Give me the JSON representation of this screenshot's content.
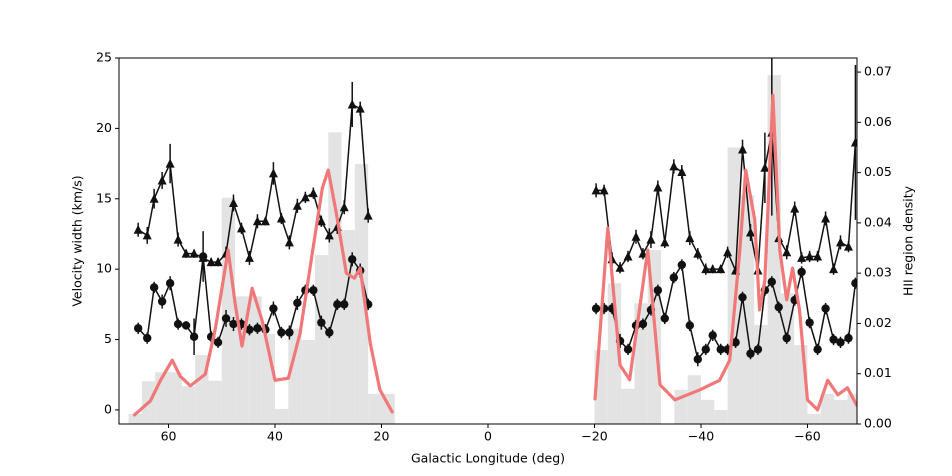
{
  "chart_data": {
    "type": "line",
    "xlabel": "Galactic Longitude (deg)",
    "ylabel": "Velocity width (km/s)",
    "y2label": "HII region density",
    "xlim": [
      69.3,
      -69.3
    ],
    "ylim": [
      -1,
      25
    ],
    "y2lim": [
      0,
      0.0728
    ],
    "xticks": [
      60,
      40,
      20,
      0,
      {
        "value": -20,
        "label": "−20"
      },
      {
        "value": -40,
        "label": "−40"
      },
      {
        "value": -60,
        "label": "−60"
      }
    ],
    "yticks": [
      0,
      5,
      10,
      15,
      20,
      25
    ],
    "y2ticks": [
      {
        "value": 0,
        "label": "0.00"
      },
      {
        "value": 0.01,
        "label": "0.01"
      },
      {
        "value": 0.02,
        "label": "0.02"
      },
      {
        "value": 0.03,
        "label": "0.03"
      },
      {
        "value": 0.04,
        "label": "0.04"
      },
      {
        "value": 0.05,
        "label": "0.05"
      },
      {
        "value": 0.06,
        "label": "0.06"
      },
      {
        "value": 0.07,
        "label": "0.07"
      }
    ],
    "series": [
      {
        "type": "histogram",
        "axis": "y2",
        "color": "#e3e3e3",
        "bins": [
          67.5,
          65,
          62.5,
          60,
          57.5,
          55,
          52.5,
          50,
          47.5,
          45,
          42.5,
          40,
          37.5,
          35,
          32.5,
          30,
          27.5,
          25,
          22.5,
          20,
          17.5,
          15,
          12.5,
          10,
          7.5,
          5,
          2.5,
          0,
          -2.5,
          -5,
          -7.5,
          -10,
          -12.5,
          -15,
          -17.5,
          -20,
          -22.5,
          -25,
          -27.5,
          -30,
          -32.5,
          -35,
          -37.5,
          -40,
          -42.5,
          -45,
          -47.5,
          -50,
          -52.5,
          -55,
          -57.5,
          -60,
          -62.5,
          -65,
          -67.5,
          -70
        ],
        "values": [
          0.002,
          0.0085,
          0.0103,
          0.0103,
          0.0075,
          0.0137,
          0.0086,
          0.045,
          0.0254,
          0.0254,
          0.0179,
          0.003,
          0.019,
          0.0167,
          0.0336,
          0.058,
          0.0386,
          0.0517,
          0.006,
          0.006,
          0,
          0,
          0,
          0,
          0,
          0,
          0,
          0,
          0,
          0,
          0,
          0,
          0,
          0,
          0,
          0.0147,
          0.028,
          0.007,
          0.024,
          0.0346,
          0,
          0.0068,
          0.0097,
          0.0048,
          0.0028,
          0.055,
          0.0455,
          0.0197,
          0.0694,
          0.026,
          0.0157,
          0.002,
          0.006,
          0.0048,
          0.006
        ]
      },
      {
        "type": "line",
        "marker": "triangle",
        "color": "#111111",
        "x": [
          65.7,
          64,
          62.7,
          61.2,
          59.7,
          58.2,
          56.7,
          55.2,
          53.5,
          52,
          50.7,
          49.2,
          47.8,
          46.3,
          44.8,
          43.3,
          41.8,
          40.3,
          38.8,
          37.3,
          35.8,
          34.3,
          32.8,
          31.3,
          29.8,
          28.3,
          27,
          25.5,
          24,
          22.5,
          null,
          -20.3,
          -21.8,
          -23.3,
          -24.8,
          -26.3,
          -27.8,
          -29.1,
          -30.6,
          -31.9,
          -33.2,
          -34.9,
          -36.4,
          -37.9,
          -39.4,
          -40.9,
          -42.2,
          -43.7,
          -45,
          -46.5,
          -47.8,
          -49.3,
          -50.7,
          -52,
          -53.3,
          -54.6,
          -56.1,
          -57.6,
          -58.9,
          -60.4,
          -61.9,
          -63.4,
          -64.9,
          -66.2,
          -67.7,
          -69
        ],
        "values": [
          12.8,
          12.4,
          15,
          16.3,
          17.5,
          12.1,
          11.1,
          11.1,
          10.8,
          10.5,
          10.5,
          11.1,
          14.7,
          12.9,
          10.8,
          13.4,
          13.4,
          16.8,
          13.6,
          11.9,
          14.5,
          15.1,
          15.4,
          13.4,
          12.4,
          13,
          14.4,
          21.7,
          21.4,
          13.8,
          null,
          15.6,
          15.6,
          10.7,
          10.1,
          10.9,
          12.3,
          11.1,
          12.1,
          15.8,
          11.9,
          17.3,
          16.9,
          12.2,
          11.1,
          10,
          10,
          10,
          11.2,
          9.9,
          18.5,
          12.6,
          9.9,
          17.2,
          19.7,
          12.2,
          11.2,
          14.3,
          10.8,
          10.9,
          10.9,
          13.6,
          10,
          11.9,
          11.6,
          19
        ],
        "errors": [
          0.5,
          0.6,
          0.7,
          0.6,
          1.4,
          0.5,
          0.3,
          0.3,
          0.4,
          0.3,
          0.3,
          0.5,
          0.6,
          0.4,
          0.5,
          0.5,
          0.3,
          0.8,
          0.4,
          0.5,
          0.5,
          0.4,
          0.4,
          0.4,
          0.5,
          0.5,
          0.5,
          1.6,
          0.5,
          0.5,
          null,
          0.5,
          0.4,
          0.5,
          0.4,
          0.4,
          0.5,
          0.4,
          0.6,
          0.5,
          0.4,
          0.5,
          0.5,
          0.5,
          0.4,
          0.4,
          0.3,
          0.3,
          0.4,
          0.3,
          0.7,
          0.6,
          0.3,
          2.5,
          5.9,
          0.6,
          0.5,
          0.5,
          0.4,
          0.4,
          0.4,
          0.5,
          0.4,
          0.5,
          0.4,
          5.5
        ]
      },
      {
        "type": "line",
        "marker": "circle",
        "color": "#111111",
        "x": [
          65.7,
          64,
          62.7,
          61.2,
          59.7,
          58.2,
          56.7,
          55.2,
          53.5,
          52,
          50.7,
          49.2,
          47.8,
          46.3,
          44.8,
          43.3,
          41.8,
          40.3,
          38.8,
          37.3,
          35.8,
          34.3,
          32.8,
          31.3,
          29.8,
          28.3,
          27,
          25.5,
          24,
          22.5,
          null,
          -20.3,
          -21.8,
          -23.3,
          -24.8,
          -26.3,
          -27.8,
          -29.1,
          -30.6,
          -31.9,
          -33.2,
          -34.9,
          -36.4,
          -37.9,
          -39.4,
          -40.9,
          -42.2,
          -43.7,
          -45,
          -46.5,
          -47.8,
          -49.3,
          -50.7,
          -52,
          -53.3,
          -54.6,
          -56.1,
          -57.6,
          -58.9,
          -60.4,
          -61.9,
          -63.4,
          -64.9,
          -66.2,
          -67.7,
          -69
        ],
        "values": [
          5.8,
          5.1,
          8.7,
          7.7,
          9,
          6.1,
          6,
          5.2,
          10.9,
          5.2,
          4.8,
          6.5,
          6.1,
          6.1,
          5.7,
          5.8,
          5.7,
          7.2,
          5.5,
          5.5,
          7.6,
          8.5,
          8.5,
          6.2,
          5.5,
          7.5,
          7.5,
          10.7,
          9.9,
          7.5,
          null,
          7.2,
          7.2,
          7.2,
          4.9,
          4.3,
          6,
          6.1,
          7.1,
          8.5,
          6.5,
          9.4,
          10.3,
          6,
          3.6,
          4.3,
          5.3,
          4.3,
          4.3,
          4.8,
          8,
          4,
          4.3,
          8.5,
          9.1,
          7.3,
          5.1,
          7.8,
          9.8,
          6.2,
          4.3,
          7.2,
          5,
          4.8,
          5.1,
          9
        ],
        "errors": [
          0.4,
          0.4,
          0.4,
          0.5,
          0.5,
          0.4,
          0.3,
          1.3,
          1.8,
          0.4,
          0.4,
          0.6,
          0.5,
          0.4,
          0.4,
          0.4,
          0.4,
          0.5,
          0.4,
          0.5,
          0.5,
          0.4,
          0.4,
          0.5,
          0.4,
          0.4,
          0.4,
          0.5,
          0.5,
          0.4,
          null,
          0.4,
          0.4,
          0.4,
          0.5,
          0.4,
          0.4,
          0.4,
          0.4,
          0.4,
          0.4,
          0.4,
          0.4,
          0.4,
          0.5,
          0.4,
          0.4,
          0.4,
          0.4,
          0.4,
          0.4,
          0.4,
          0.4,
          0.4,
          0.4,
          0.4,
          0.4,
          0.4,
          0.4,
          0.4,
          0.4,
          0.4,
          0.4,
          0.4,
          0.4,
          0.4
        ]
      },
      {
        "type": "curve",
        "axis": "y2",
        "color": "#f07878",
        "x": [
          66.4,
          63.4,
          61.5,
          59.3,
          57.8,
          55.9,
          53.1,
          51.2,
          48.8,
          47.5,
          46.2,
          44.3,
          42.4,
          40,
          37.5,
          35.3,
          33,
          31.1,
          30,
          28.5,
          26.6,
          25.1,
          24,
          22.1,
          20.3,
          18,
          null,
          -20.1,
          -22.5,
          -24.8,
          -26.6,
          -30,
          -32.3,
          -35.1,
          -39.8,
          -43.5,
          -45.4,
          -47.3,
          -48.4,
          -50.1,
          -51,
          -52,
          -53.5,
          -54.8,
          -56.1,
          -57.2,
          -58.5,
          -60,
          -61.9,
          -63.8,
          -65.7,
          -67.5,
          -69.2
        ],
        "values": [
          0.0018,
          0.0046,
          0.0087,
          0.0127,
          0.0095,
          0.0076,
          0.0099,
          0.019,
          0.0346,
          0.024,
          0.0155,
          0.027,
          0.0205,
          0.0087,
          0.0091,
          0.018,
          0.034,
          0.047,
          0.0505,
          0.042,
          0.03,
          0.029,
          0.031,
          0.016,
          0.0068,
          0.0024,
          null,
          0.005,
          0.039,
          0.0117,
          0.0088,
          0.0346,
          0.0078,
          0.0048,
          0.0068,
          0.0087,
          0.0127,
          0.0346,
          0.0505,
          0.0406,
          0.0227,
          0.0286,
          0.0654,
          0.0346,
          0.0247,
          0.031,
          0.0227,
          0.0048,
          0.0028,
          0.0087,
          0.0058,
          0.0072,
          0.0038
        ]
      }
    ]
  }
}
